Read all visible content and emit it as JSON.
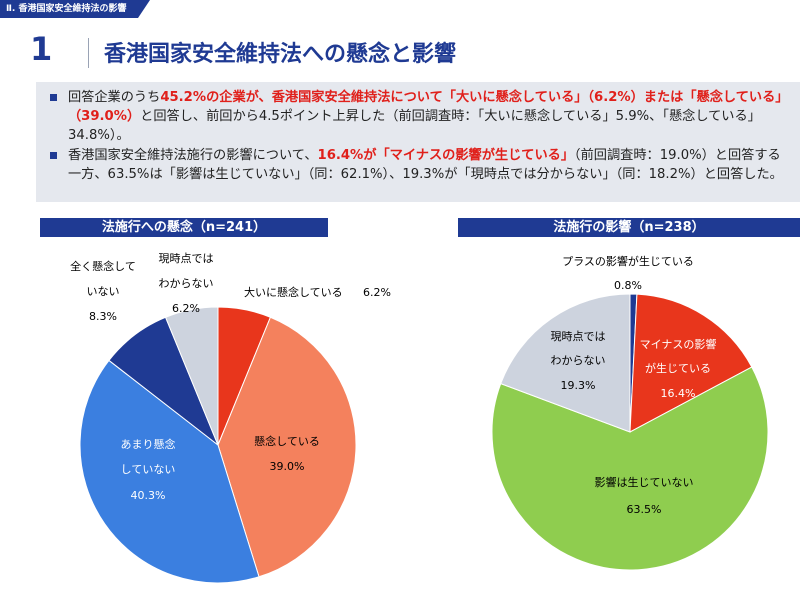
{
  "section_tag": "Ⅱ. 香港国家安全維持法の影響",
  "title": {
    "number": "1",
    "text": "香港国家安全維持法への懸念と影響"
  },
  "summary": {
    "b1": {
      "p1": "回答企業のうち",
      "hl1": "45.2%の企業が、香港国家安全維持法について「大いに懸念している」（6.2%）または「懸念している」（39.0%）",
      "p2": "と回答し、前回から4.5ポイント上昇した（前回調査時：「大いに懸念している」5.9%、「懸念している」34.8%）。"
    },
    "b2": {
      "p1": "香港国家安全維持法施行の影響について、",
      "hl1": "16.4%が「マイナスの影響が生じている」",
      "p2": "（前回調査時：19.0%）と回答する一方、63.5%は「影響は生じていない」（同：62.1%）、19.3%が「現時点では分からない」（同：18.2%）と回答した。"
    }
  },
  "chart_data": [
    {
      "type": "pie",
      "title": "法施行への懸念（n=241）",
      "slices": [
        {
          "name": "大いに懸念している",
          "value": 6.2,
          "label": "6.2%",
          "color": "#e8361c"
        },
        {
          "name": "懸念している",
          "value": 39.0,
          "label": "39.0%",
          "color": "#f4815d"
        },
        {
          "name": "あまり懸念していない",
          "value": 40.3,
          "label": "40.3%",
          "color": "#3b7fe0"
        },
        {
          "name": "全く懸念していない",
          "value": 8.3,
          "label": "8.3%",
          "color": "#1f3a93"
        },
        {
          "name": "現時点ではわからない",
          "value": 6.2,
          "label": "6.2%",
          "color": "#cdd3de"
        }
      ]
    },
    {
      "type": "pie",
      "title": "法施行の影響（n=238）",
      "slices": [
        {
          "name": "プラスの影響が生じている",
          "value": 0.8,
          "label": "0.8%",
          "color": "#1f3a93"
        },
        {
          "name": "マイナスの影響が生じている",
          "value": 16.4,
          "label": "16.4%",
          "color": "#e8361c"
        },
        {
          "name": "影響は生じていない",
          "value": 63.5,
          "label": "63.5%",
          "color": "#8fcd4f"
        },
        {
          "name": "現時点ではわからない",
          "value": 19.3,
          "label": "19.3%",
          "color": "#cdd3de"
        }
      ]
    }
  ],
  "pie1_labels": {
    "s0_name": "大いに懸念している",
    "s1_name": "懸念している",
    "s2_name_a": "あまり懸念",
    "s2_name_b": "していない",
    "s3_name_a": "全く懸念して",
    "s3_name_b": "いない",
    "s4_name_a": "現時点では",
    "s4_name_b": "わからない"
  },
  "pie2_labels": {
    "s0_name": "プラスの影響が生じている",
    "s1_name_a": "マイナスの影響",
    "s1_name_b": "が生じている",
    "s2_name": "影響は生じていない",
    "s3_name_a": "現時点では",
    "s3_name_b": "わからない"
  }
}
